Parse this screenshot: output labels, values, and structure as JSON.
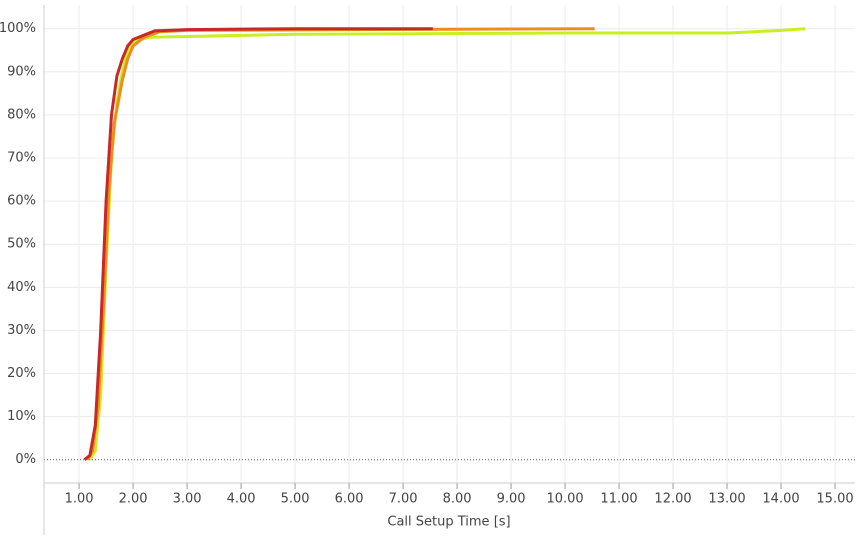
{
  "chart_data": {
    "type": "line",
    "x_label": "Call Setup Time [s]",
    "xlim": [
      0.35,
      15.37
    ],
    "ylim": [
      -5.4,
      105.5
    ],
    "grid": true,
    "xticks": [
      {
        "value": 1,
        "label": "1.00"
      },
      {
        "value": 2,
        "label": "2.00"
      },
      {
        "value": 3,
        "label": "3.00"
      },
      {
        "value": 4,
        "label": "4.00"
      },
      {
        "value": 5,
        "label": "5.00"
      },
      {
        "value": 6,
        "label": "6.00"
      },
      {
        "value": 7,
        "label": "7.00"
      },
      {
        "value": 8,
        "label": "8.00"
      },
      {
        "value": 9,
        "label": "9.00"
      },
      {
        "value": 10,
        "label": "10.00"
      },
      {
        "value": 11,
        "label": "11.00"
      },
      {
        "value": 12,
        "label": "12.00"
      },
      {
        "value": 13,
        "label": "13.00"
      },
      {
        "value": 14,
        "label": "14.00"
      },
      {
        "value": 15,
        "label": "15.00"
      }
    ],
    "yticks": [
      {
        "value": 0,
        "label": "0%"
      },
      {
        "value": 10,
        "label": "10%"
      },
      {
        "value": 20,
        "label": "20%"
      },
      {
        "value": 30,
        "label": "30%"
      },
      {
        "value": 40,
        "label": "40%"
      },
      {
        "value": 50,
        "label": "50%"
      },
      {
        "value": 60,
        "label": "60%"
      },
      {
        "value": 70,
        "label": "70%"
      },
      {
        "value": 80,
        "label": "80%"
      },
      {
        "value": 90,
        "label": "90%"
      },
      {
        "value": 100,
        "label": "100%"
      }
    ],
    "series": [
      {
        "color": "#c8f020",
        "x": [
          1.2,
          1.3,
          1.4,
          1.5,
          1.6,
          1.7,
          1.8,
          1.9,
          2.0,
          2.3,
          3,
          5,
          10,
          13,
          13.5,
          14,
          14.45
        ],
        "values": [
          0,
          2,
          15,
          45,
          70,
          83,
          90,
          95,
          97,
          98,
          98.2,
          98.7,
          99,
          99,
          99.3,
          99.6,
          100
        ]
      },
      {
        "color": "#f08c1e",
        "x": [
          1.15,
          1.25,
          1.35,
          1.45,
          1.55,
          1.65,
          1.8,
          1.9,
          2.0,
          2.2,
          2.5,
          3,
          6,
          10.55
        ],
        "values": [
          0,
          2,
          12,
          35,
          62,
          78,
          88,
          93,
          96,
          98,
          99.3,
          99.6,
          99.8,
          100
        ]
      },
      {
        "color": "#c82828",
        "x": [
          1.1,
          1.2,
          1.3,
          1.4,
          1.5,
          1.6,
          1.7,
          1.8,
          1.9,
          2.0,
          2.2,
          2.4,
          3,
          5,
          7.55
        ],
        "values": [
          0,
          1,
          8,
          30,
          60,
          80,
          89,
          93,
          96,
          97.5,
          98.5,
          99.5,
          99.8,
          100,
          100
        ]
      }
    ]
  }
}
